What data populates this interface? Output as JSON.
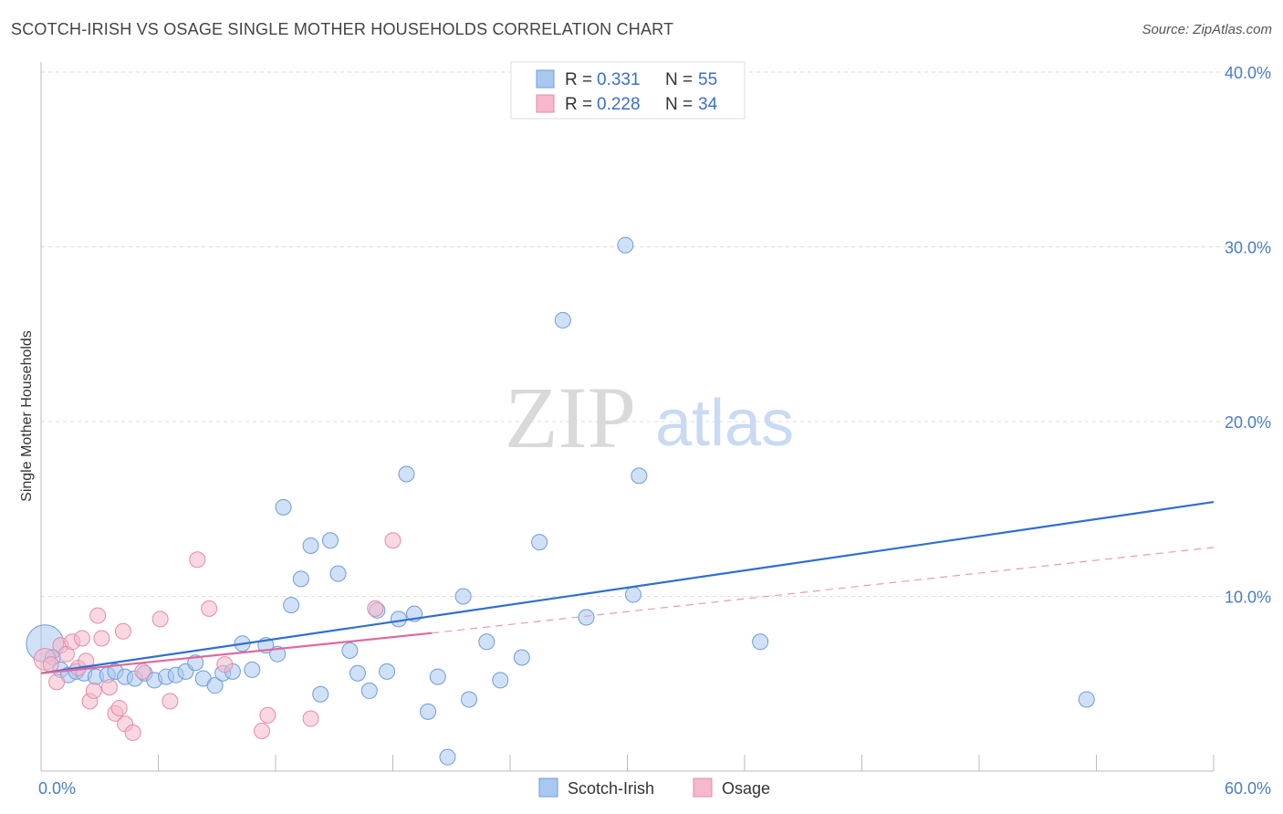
{
  "title": "SCOTCH-IRISH VS OSAGE SINGLE MOTHER HOUSEHOLDS CORRELATION CHART",
  "source": "Source: ZipAtlas.com",
  "watermark": {
    "zip": "ZIP",
    "atlas": "atlas"
  },
  "chart_data": {
    "type": "scatter",
    "ylabel": "Single Mother Households",
    "xlim": [
      0,
      60
    ],
    "ylim": [
      0,
      40
    ],
    "x_ticks": [
      "0.0%",
      "60.0%"
    ],
    "y_ticks": [
      {
        "value": 10,
        "label": "10.0%"
      },
      {
        "value": 20,
        "label": "20.0%"
      },
      {
        "value": 30,
        "label": "30.0%"
      },
      {
        "value": 40,
        "label": "40.0%"
      }
    ],
    "grid": true,
    "legend": {
      "placement": "top-center",
      "entries": [
        {
          "r_label": "R =",
          "r_value": "0.331",
          "n_label": "N =",
          "n_value": "55",
          "color": "#a9c8f0"
        },
        {
          "r_label": "R =",
          "r_value": "0.228",
          "n_label": "N =",
          "n_value": "34",
          "color": "#f6b8cb"
        }
      ]
    },
    "series": [
      {
        "name": "Scotch-Irish",
        "color": "#a9c8f0",
        "stroke": "#6f9bd8",
        "trend": {
          "x": [
            0,
            60
          ],
          "y": [
            5.6,
            15.4
          ],
          "color": "#2f6fd0"
        },
        "points": [
          [
            0.2,
            7.3,
            2.4
          ],
          [
            0.6,
            6.5,
            1
          ],
          [
            1.0,
            5.8,
            1
          ],
          [
            1.4,
            5.5,
            1
          ],
          [
            1.8,
            5.7,
            1
          ],
          [
            2.2,
            5.6,
            1
          ],
          [
            2.8,
            5.4,
            1
          ],
          [
            3.4,
            5.5,
            1
          ],
          [
            3.8,
            5.7,
            1
          ],
          [
            4.3,
            5.4,
            1
          ],
          [
            4.8,
            5.3,
            1
          ],
          [
            5.3,
            5.6,
            1
          ],
          [
            5.8,
            5.2,
            1
          ],
          [
            6.4,
            5.4,
            1
          ],
          [
            6.9,
            5.5,
            1
          ],
          [
            7.4,
            5.7,
            1
          ],
          [
            7.9,
            6.2,
            1
          ],
          [
            8.3,
            5.3,
            1
          ],
          [
            8.9,
            4.9,
            1
          ],
          [
            9.3,
            5.6,
            1
          ],
          [
            9.8,
            5.7,
            1
          ],
          [
            10.3,
            7.3,
            1
          ],
          [
            10.8,
            5.8,
            1
          ],
          [
            11.5,
            7.2,
            1
          ],
          [
            12.1,
            6.7,
            1
          ],
          [
            12.4,
            15.1,
            1
          ],
          [
            12.8,
            9.5,
            1
          ],
          [
            13.3,
            11.0,
            1
          ],
          [
            13.8,
            12.9,
            1
          ],
          [
            14.3,
            4.4,
            1
          ],
          [
            14.8,
            13.2,
            1
          ],
          [
            15.2,
            11.3,
            1
          ],
          [
            15.8,
            6.9,
            1
          ],
          [
            16.2,
            5.6,
            1
          ],
          [
            16.8,
            4.6,
            1
          ],
          [
            17.2,
            9.2,
            1
          ],
          [
            17.7,
            5.7,
            1
          ],
          [
            18.3,
            8.7,
            1
          ],
          [
            18.7,
            17.0,
            1
          ],
          [
            19.1,
            9.0,
            1
          ],
          [
            19.8,
            3.4,
            1
          ],
          [
            20.3,
            5.4,
            1
          ],
          [
            20.8,
            0.8,
            1
          ],
          [
            21.6,
            10.0,
            1
          ],
          [
            21.9,
            4.1,
            1
          ],
          [
            22.8,
            7.4,
            1
          ],
          [
            23.5,
            5.2,
            1
          ],
          [
            24.6,
            6.5,
            1
          ],
          [
            25.5,
            13.1,
            1
          ],
          [
            26.7,
            25.8,
            1
          ],
          [
            27.9,
            8.8,
            1
          ],
          [
            29.9,
            30.1,
            1
          ],
          [
            30.3,
            10.1,
            1
          ],
          [
            30.6,
            16.9,
            1
          ],
          [
            36.8,
            7.4,
            1
          ],
          [
            53.5,
            4.1,
            1
          ]
        ]
      },
      {
        "name": "Osage",
        "color": "#f6b8cb",
        "stroke": "#e58aa8",
        "trend": {
          "x": [
            0,
            20
          ],
          "y": [
            5.6,
            7.9
          ],
          "color": "#e0699a"
        },
        "trend_ext": {
          "x": [
            20,
            60
          ],
          "y": [
            7.9,
            12.8
          ],
          "color": "#e79ab5"
        },
        "points": [
          [
            0.2,
            6.4,
            1.4
          ],
          [
            0.5,
            6.1,
            1
          ],
          [
            0.8,
            5.1,
            1
          ],
          [
            1.0,
            7.2,
            1
          ],
          [
            1.3,
            6.7,
            1
          ],
          [
            1.6,
            7.4,
            1
          ],
          [
            1.9,
            5.9,
            1
          ],
          [
            2.1,
            7.6,
            1
          ],
          [
            2.3,
            6.3,
            1
          ],
          [
            2.5,
            4.0,
            1
          ],
          [
            2.7,
            4.6,
            1
          ],
          [
            2.9,
            8.9,
            1
          ],
          [
            3.1,
            7.6,
            1
          ],
          [
            3.5,
            4.8,
            1
          ],
          [
            3.8,
            3.3,
            1
          ],
          [
            4.0,
            3.6,
            1
          ],
          [
            4.2,
            8.0,
            1
          ],
          [
            4.3,
            2.7,
            1
          ],
          [
            4.7,
            2.2,
            1
          ],
          [
            5.2,
            5.7,
            1
          ],
          [
            6.1,
            8.7,
            1
          ],
          [
            6.6,
            4.0,
            1
          ],
          [
            8.0,
            12.1,
            1
          ],
          [
            8.6,
            9.3,
            1
          ],
          [
            9.4,
            6.1,
            1
          ],
          [
            11.3,
            2.3,
            1
          ],
          [
            11.6,
            3.2,
            1
          ],
          [
            13.8,
            3.0,
            1
          ],
          [
            17.1,
            9.3,
            1
          ],
          [
            18.0,
            13.2,
            1
          ]
        ]
      }
    ]
  }
}
